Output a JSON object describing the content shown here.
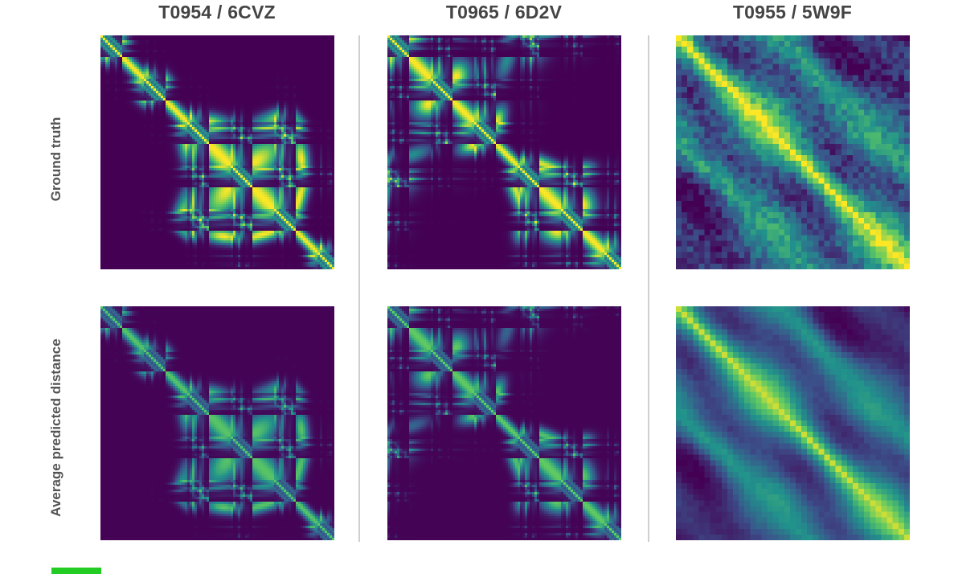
{
  "figure": {
    "columns": [
      {
        "title": "T0954 / 6CVZ"
      },
      {
        "title": "T0965 / 6D2V"
      },
      {
        "title": "T0955 / 5W9F"
      }
    ],
    "rows": [
      {
        "label": "Ground truth"
      },
      {
        "label": "Average predicted distance"
      }
    ],
    "accent_color": "#22cc22",
    "divider_color": "#cfcfcf",
    "colormap": "viridis"
  },
  "chart_data": {
    "type": "heatmap",
    "layout": "2x3 grid of distance matrices",
    "colormap": "viridis",
    "colormap_stops": [
      "#440154",
      "#3b528b",
      "#21918c",
      "#5ec962",
      "#fde725"
    ],
    "row_labels": [
      "Ground truth",
      "Average predicted distance"
    ],
    "panels": [
      {
        "column": "T0954 / 6CVZ",
        "row": "Ground truth"
      },
      {
        "column": "T0954 / 6CVZ",
        "row": "Average predicted distance"
      },
      {
        "column": "T0965 / 6D2V",
        "row": "Ground truth"
      },
      {
        "column": "T0965 / 6D2V",
        "row": "Average predicted distance"
      },
      {
        "column": "T0955 / 5W9F",
        "row": "Ground truth"
      },
      {
        "column": "T0955 / 5W9F",
        "row": "Average predicted distance"
      }
    ]
  }
}
